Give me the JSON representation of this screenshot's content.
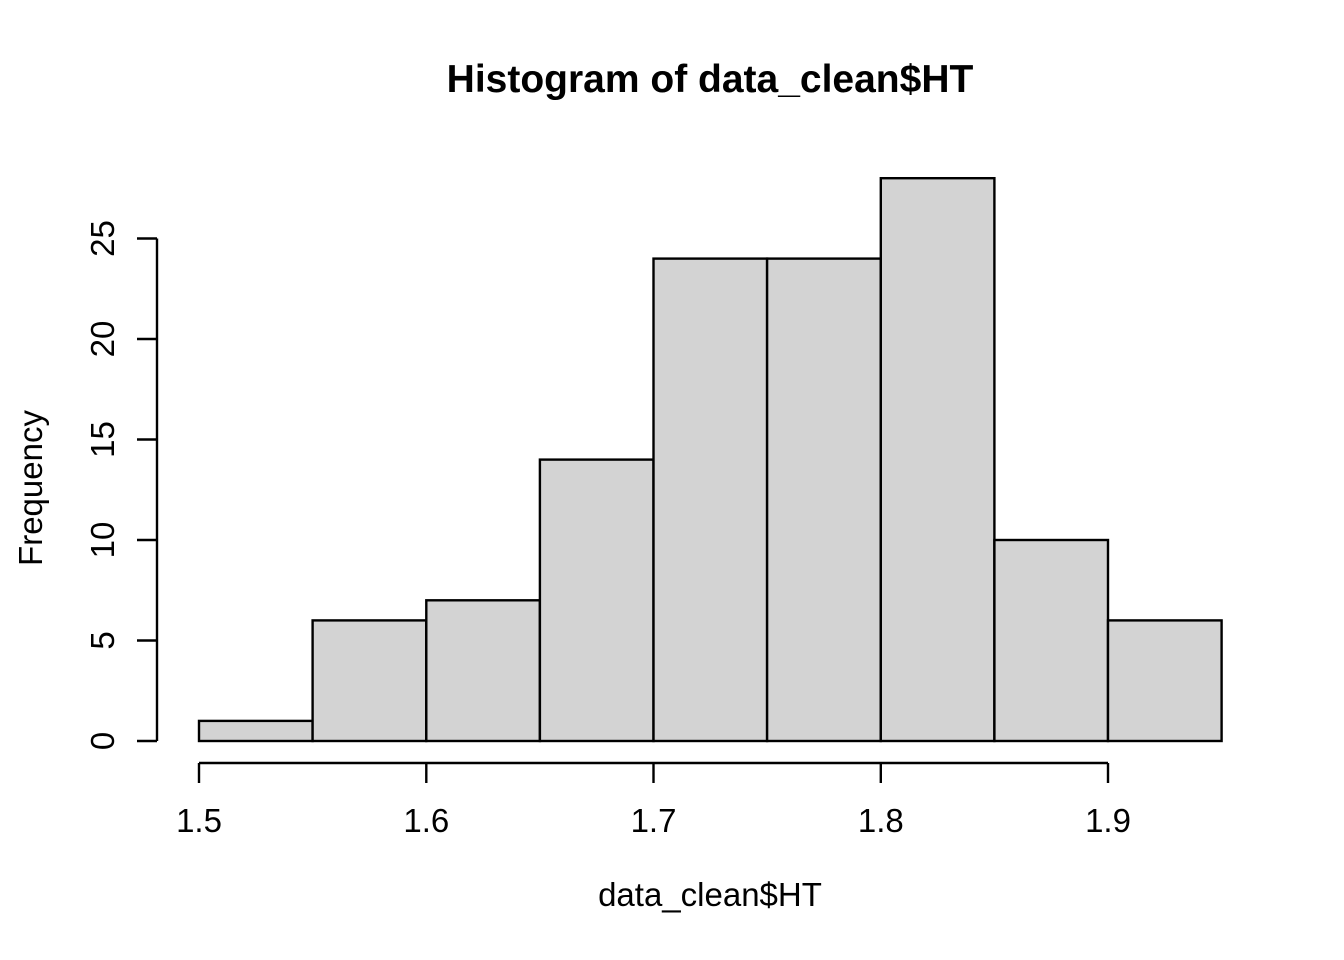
{
  "chart_data": {
    "type": "bar",
    "variant": "histogram",
    "title": "Histogram of data_clean$HT",
    "xlabel": "data_clean$HT",
    "ylabel": "Frequency",
    "bin_edges": [
      1.5,
      1.55,
      1.6,
      1.65,
      1.7,
      1.75,
      1.8,
      1.85,
      1.9,
      1.95
    ],
    "counts": [
      1,
      6,
      7,
      14,
      24,
      24,
      28,
      10,
      6
    ],
    "x_ticks": [
      1.5,
      1.6,
      1.7,
      1.8,
      1.9
    ],
    "x_tick_labels": [
      "1.5",
      "1.6",
      "1.7",
      "1.8",
      "1.9"
    ],
    "y_ticks": [
      0,
      5,
      10,
      15,
      20,
      25
    ],
    "y_tick_labels": [
      "0",
      "5",
      "10",
      "15",
      "20",
      "25"
    ],
    "xlim": [
      1.5,
      1.95
    ],
    "ylim": [
      0,
      28
    ],
    "grid": false,
    "legend_position": "none",
    "colors": {
      "bar_fill": "#d3d3d3",
      "bar_border": "#000000",
      "axis": "#000000",
      "text": "#000000",
      "background": "#ffffff"
    }
  }
}
